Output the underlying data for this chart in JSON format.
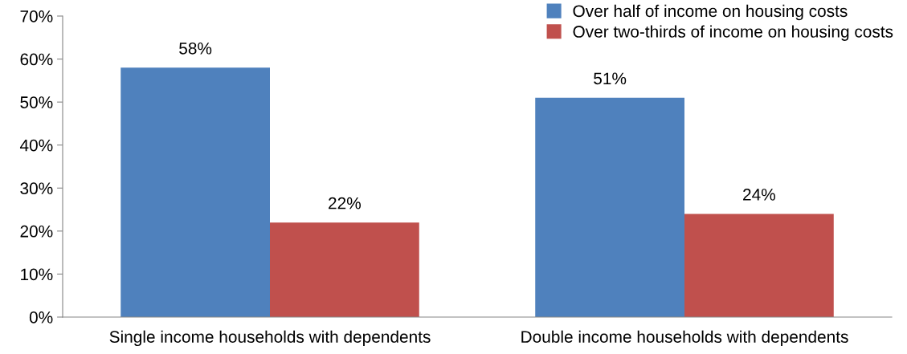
{
  "chart_data": {
    "type": "bar",
    "categories": [
      "Single income households with dependents",
      "Double income households with dependents"
    ],
    "series": [
      {
        "name": "Over half of income on housing costs",
        "color": "#4f81bd",
        "values": [
          58,
          51
        ]
      },
      {
        "name": "Over two-thirds of income on housing costs",
        "color": "#c0504d",
        "values": [
          22,
          24
        ]
      }
    ],
    "ylim": [
      0,
      70
    ],
    "yticks": [
      {
        "value": 0,
        "label": "0%"
      },
      {
        "value": 10,
        "label": "10%"
      },
      {
        "value": 20,
        "label": "20%"
      },
      {
        "value": 30,
        "label": "30%"
      },
      {
        "value": 40,
        "label": "40%"
      },
      {
        "value": 50,
        "label": "50%"
      },
      {
        "value": 60,
        "label": "60%"
      },
      {
        "value": 70,
        "label": "70%"
      }
    ],
    "value_labels": [
      [
        "58%",
        "51%"
      ],
      [
        "22%",
        "24%"
      ]
    ],
    "grid": false,
    "legend": "top right"
  }
}
